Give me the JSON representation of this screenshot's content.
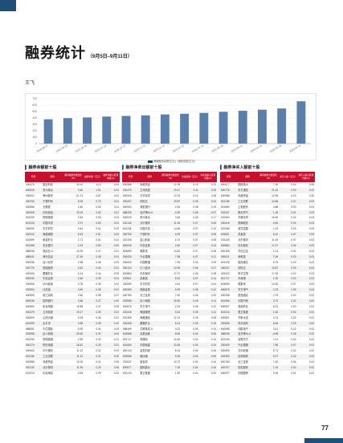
{
  "header": {
    "title": "融券统计",
    "subtitle": "（9月5日–9月11日）",
    "author": "王飞"
  },
  "chart_data": {
    "type": "bar",
    "categories": [
      "2023-08-17",
      "2023-08-20",
      "2023-08-25",
      "2023-07-04",
      "2023-07-07",
      "2023-07-11",
      "2023-07-14",
      "2023-07-20",
      "2023-07-25",
      "2023-08-28",
      "2023-08-31",
      "2023-09-05",
      "2023-09-08",
      "2023-09-11"
    ],
    "values": [
      380,
      398,
      408,
      422,
      432,
      441,
      455,
      466,
      479,
      496,
      512,
      529,
      548,
      660
    ],
    "ylim": [
      0,
      700
    ],
    "yticks": [
      0,
      100,
      200,
      300,
      400,
      500,
      600,
      700
    ],
    "legend": "两融融资余额(亿元) · 融券余额(亿元)",
    "color": "#5b7fad",
    "grid": true
  },
  "tables": [
    {
      "title": "融券余额前十股",
      "columns": [
        "代码",
        "简称",
        "期间融券余额变化（%）",
        "融券余额（亿元）",
        "融券余额占流通市值(%)"
      ],
      "rows": [
        [
          "300476",
          "胜宏科技",
          "33.12",
          "1.13",
          "0.04"
        ],
        [
          "600519",
          "贵州茅台",
          "3.45",
          "1.01",
          "0.01"
        ],
        [
          "300002",
          "神州泰岳",
          "21.73",
          "0.87",
          "0.02"
        ],
        [
          "300750",
          "宁德时代",
          "6.09",
          "0.79",
          "0.01"
        ],
        [
          "600858",
          "五粮液",
          "2.40",
          "0.69",
          "0.01"
        ],
        [
          "300308",
          "中际旭创",
          "19.19",
          "0.62",
          "0.01"
        ],
        [
          "603259",
          "药明康德",
          "2.64",
          "0.59",
          "0.03"
        ],
        [
          "601318",
          "中国平安",
          "2.07",
          "0.53",
          "0.01"
        ],
        [
          "300059",
          "东方财富",
          "4.44",
          "0.51",
          "0.02"
        ],
        [
          "002415",
          "海康威视",
          "5.43",
          "0.51",
          "0.02"
        ],
        [
          "601899",
          "紫金矿业",
          "2.71",
          "0.51",
          "0.01"
        ],
        [
          "601288",
          "农业银行",
          "-3.19",
          "0.50",
          "0.00"
        ],
        [
          "688256",
          "寒武纪-U",
          "15.39",
          "0.47",
          "0.01"
        ],
        [
          "688041",
          "海光信息",
          "27.45",
          "0.45",
          "0.01"
        ],
        [
          "600938",
          "百川化学",
          "2.98",
          "0.45",
          "0.03"
        ],
        [
          "002776",
          "恒瑞医药",
          "-0.52",
          "0.44",
          "0.01"
        ],
        [
          "000408",
          "藏格矿业",
          "6.13",
          "0.44",
          "0.05"
        ],
        [
          "600030",
          "中信证券",
          "2.60",
          "0.39",
          "0.01"
        ],
        [
          "000568",
          "泸州老窖",
          "4.75",
          "0.38",
          "0.02"
        ],
        [
          "002594",
          "比亚迪",
          "3.49",
          "0.38",
          "0.01"
        ],
        [
          "600895",
          "张江高科",
          "2.60",
          "0.38",
          "0.07"
        ],
        [
          "600036",
          "招商银行",
          "0.56",
          "0.37",
          "0.00"
        ],
        [
          "600580",
          "卧龙电驱",
          "19.86",
          "0.37",
          "0.06"
        ],
        [
          "002475",
          "立讯精密",
          "19.17",
          "0.36",
          "0.01"
        ],
        [
          "600809",
          "山西汾酒",
          "5.39",
          "0.36",
          "0.01"
        ],
        [
          "601099",
          "太平洋",
          "4.59",
          "0.35",
          "0.10"
        ],
        [
          "688981",
          "中芯国际",
          "-3.90",
          "0.34",
          "0.03"
        ],
        [
          "002558",
          "巨人网络",
          "25.50",
          "0.34",
          "0.04"
        ],
        [
          "603259",
          "药明康德",
          "2.65",
          "0.33",
          "0.01"
        ],
        [
          "300274",
          "阳光电源",
          "18.40",
          "0.33",
          "0.01"
        ],
        [
          "000063",
          "中兴通讯",
          "11.12",
          "0.31",
          "0.00"
        ],
        [
          "601138",
          "工业富联",
          "11.12",
          "0.31",
          "0.00"
        ],
        [
          "600988",
          "赤峰黄金",
          "12.09",
          "0.31",
          "0.06"
        ],
        [
          "002130",
          "沃尔核材",
          "11.94",
          "0.29",
          "0.08"
        ],
        [
          "601919",
          "中远海控",
          "-0.53",
          "0.29",
          "0.02"
        ]
      ]
    },
    {
      "title": "融券净卖出额前十股",
      "columns": [
        "代码",
        "简称",
        "期间融券余额变化（%）",
        "净卖出额（亿元）",
        "净卖出额占流通市值(%)"
      ],
      "rows": [
        [
          "600988",
          "赤峰黄金",
          "12.09",
          "0.19",
          "0.20"
        ],
        [
          "002475",
          "立讯精密",
          "19.17",
          "0.11",
          "0.05"
        ],
        [
          "600309",
          "万华化学",
          "13.76",
          "0.10",
          "0.08"
        ],
        [
          "300207",
          "欣旺达",
          "10.87",
          "0.09",
          "0.04"
        ],
        [
          "600000",
          "浦发银行",
          "2.54",
          "0.08",
          "0.19"
        ],
        [
          "688235",
          "百济神州-U",
          "-0.95",
          "0.08",
          "0.07"
        ],
        [
          "600519",
          "贵州茅台",
          "3.45",
          "0.08",
          "0.17"
        ],
        [
          "002130",
          "沃尔核材",
          "11.94",
          "0.07",
          "0.06"
        ],
        [
          "601138",
          "中国平安",
          "14.66",
          "0.07",
          "0.12"
        ],
        [
          "300750",
          "宁德时代",
          "6.09",
          "0.07",
          "0.05"
        ],
        [
          "002195",
          "岩山科技",
          "6.74",
          "0.07",
          "0.08"
        ],
        [
          "600030",
          "中信证券",
          "2.60",
          "0.07",
          "0.13"
        ],
        [
          "603659",
          "璞泰来",
          "14.82",
          "0.07",
          "0.08"
        ],
        [
          "000426",
          "兴业银锡",
          "7.58",
          "0.07",
          "0.11"
        ],
        [
          "600050",
          "中国联通",
          "7.05",
          "0.06",
          "0.09"
        ],
        [
          "300124",
          "汇川技术",
          "12.99",
          "0.06",
          "0.07"
        ],
        [
          "600884",
          "杉杉股份",
          "17.07",
          "0.06",
          "0.08"
        ],
        [
          "002821",
          "凯莱英",
          "8.10",
          "0.07",
          "0.14"
        ],
        [
          "300059",
          "东方财富",
          "4.44",
          "0.07",
          "0.04"
        ],
        [
          "600369",
          "西南证券",
          "5.09",
          "0.06",
          "0.12"
        ],
        [
          "600783",
          "长江证券",
          "7.62",
          "0.06",
          "0.20"
        ],
        [
          "002558",
          "巨人网络",
          "25.50",
          "0.05",
          "0.11"
        ],
        [
          "600875",
          "东方电气",
          "2.23",
          "0.05",
          "0.22"
        ],
        [
          "002415",
          "海康威视",
          "5.43",
          "0.05",
          "0.11"
        ],
        [
          "002465",
          "海格通信",
          "12.13",
          "0.05",
          "0.08"
        ],
        [
          "000408",
          "藏格矿业",
          "6.13",
          "0.05",
          "0.19"
        ],
        [
          "688469",
          "芯联集成-U",
          "4.22",
          "0.05",
          "0.14"
        ],
        [
          "603986",
          "兆易创新",
          "8.69",
          "0.04",
          "0.06"
        ],
        [
          "601717",
          "郑煤机",
          "10.45",
          "0.04",
          "0.14"
        ],
        [
          "601064",
          "中国电建",
          "10.45",
          "0.04",
          "0.24"
        ],
        [
          "600143",
          "金发科技",
          "8.24",
          "0.04",
          "0.06"
        ],
        [
          "603956",
          "威派格",
          "9.26",
          "0.04",
          "0.09"
        ],
        [
          "300037",
          "新宙邦",
          "10.72",
          "0.04",
          "0.10"
        ],
        [
          "600577",
          "国网英大",
          "7.30",
          "0.04",
          "0.16"
        ],
        [
          "601216",
          "君正集团",
          "1.52",
          "0.04",
          "0.09"
        ]
      ]
    },
    {
      "title": "融券净买入额前十股",
      "columns": [
        "代码",
        "简称",
        "期间融券余额变化（%）",
        "净买入额（亿元）",
        "净买入额占流通市值(%)"
      ],
      "rows": [
        [
          "600577",
          "国网英大",
          "7.30",
          "0.04",
          "0.06"
        ],
        [
          "600776",
          "东方通信",
          "21.43",
          "0.03",
          "0.00"
        ],
        [
          "600988",
          "赤峰黄金",
          "12.09",
          "0.19",
          "0.20"
        ],
        [
          "601138",
          "工业富联",
          "14.66",
          "0.07",
          "0.03"
        ],
        [
          "601880",
          "辽港股份",
          "4.88",
          "0.03",
          "0.03"
        ],
        [
          "002267",
          "陕天然气",
          "1.26",
          "0.01",
          "0.03"
        ],
        [
          "002064",
          "华峰化学",
          "16.45",
          "0.04",
          "0.03"
        ],
        [
          "000415",
          "渤海租赁",
          "6.45",
          "0.04",
          "0.03"
        ],
        [
          "002266",
          "浙富控股",
          "1.24",
          "0.03",
          "0.03"
        ],
        [
          "002821",
          "凯莱英",
          "8.10",
          "0.07",
          "0.03"
        ],
        [
          "002130",
          "沃尔核材",
          "11.94",
          "0.07",
          "0.03"
        ],
        [
          "600884",
          "杉杉股份",
          "17.07",
          "0.06",
          "0.03"
        ],
        [
          "600155",
          "华创云信",
          "2.14",
          "0.04",
          "0.03"
        ],
        [
          "000021",
          "深科技",
          "7.06",
          "0.03",
          "0.03"
        ],
        [
          "601225",
          "陕西煤业",
          "6.79",
          "0.03",
          "0.03"
        ],
        [
          "300207",
          "欣旺达",
          "10.87",
          "0.09",
          "0.03"
        ],
        [
          "002022",
          "科华生物",
          "17.94",
          "0.02",
          "0.03"
        ],
        [
          "601717",
          "天津港",
          "1.05",
          "0.02",
          "0.03"
        ],
        [
          "603659",
          "璞泰来",
          "14.82",
          "0.07",
          "0.03"
        ],
        [
          "600875",
          "东方电气",
          "2.23",
          "0.05",
          "0.03"
        ],
        [
          "600258",
          "首旅酒店",
          "2.79",
          "0.02",
          "0.02"
        ],
        [
          "601965",
          "中国汽研",
          "4.73",
          "0.02",
          "0.02"
        ],
        [
          "600557",
          "康缘药业",
          "8.21",
          "0.00",
          "0.02"
        ],
        [
          "601216",
          "君正集团",
          "1.52",
          "0.04",
          "0.02"
        ],
        [
          "600801",
          "华新水泥",
          "4.74",
          "0.02",
          "0.02"
        ],
        [
          "000636",
          "风华高科",
          "8.48",
          "0.03",
          "0.02"
        ],
        [
          "600988",
          "均胜电子",
          "3.41",
          "0.02",
          "0.02"
        ],
        [
          "688235",
          "百济神州-U",
          "-0.95",
          "0.08",
          "0.02"
        ],
        [
          "601339",
          "百隆东方",
          "1.11",
          "0.00",
          "0.02"
        ],
        [
          "000426",
          "兴业银锡",
          "7.58",
          "0.07",
          "0.02"
        ],
        [
          "000559",
          "万向钱潮",
          "5.71",
          "0.02",
          "0.02"
        ],
        [
          "002390",
          "信邦制药",
          "5.07",
          "0.02",
          "0.02"
        ],
        [
          "600783",
          "长江证券",
          "7.62",
          "0.06",
          "0.02"
        ],
        [
          "600707",
          "彩虹股份",
          "1.24",
          "0.02",
          "0.02"
        ],
        [
          "600007",
          "中国国贸",
          "3.09",
          "0.01",
          "0.02"
        ]
      ]
    }
  ],
  "footer": {
    "page_number": "77"
  }
}
